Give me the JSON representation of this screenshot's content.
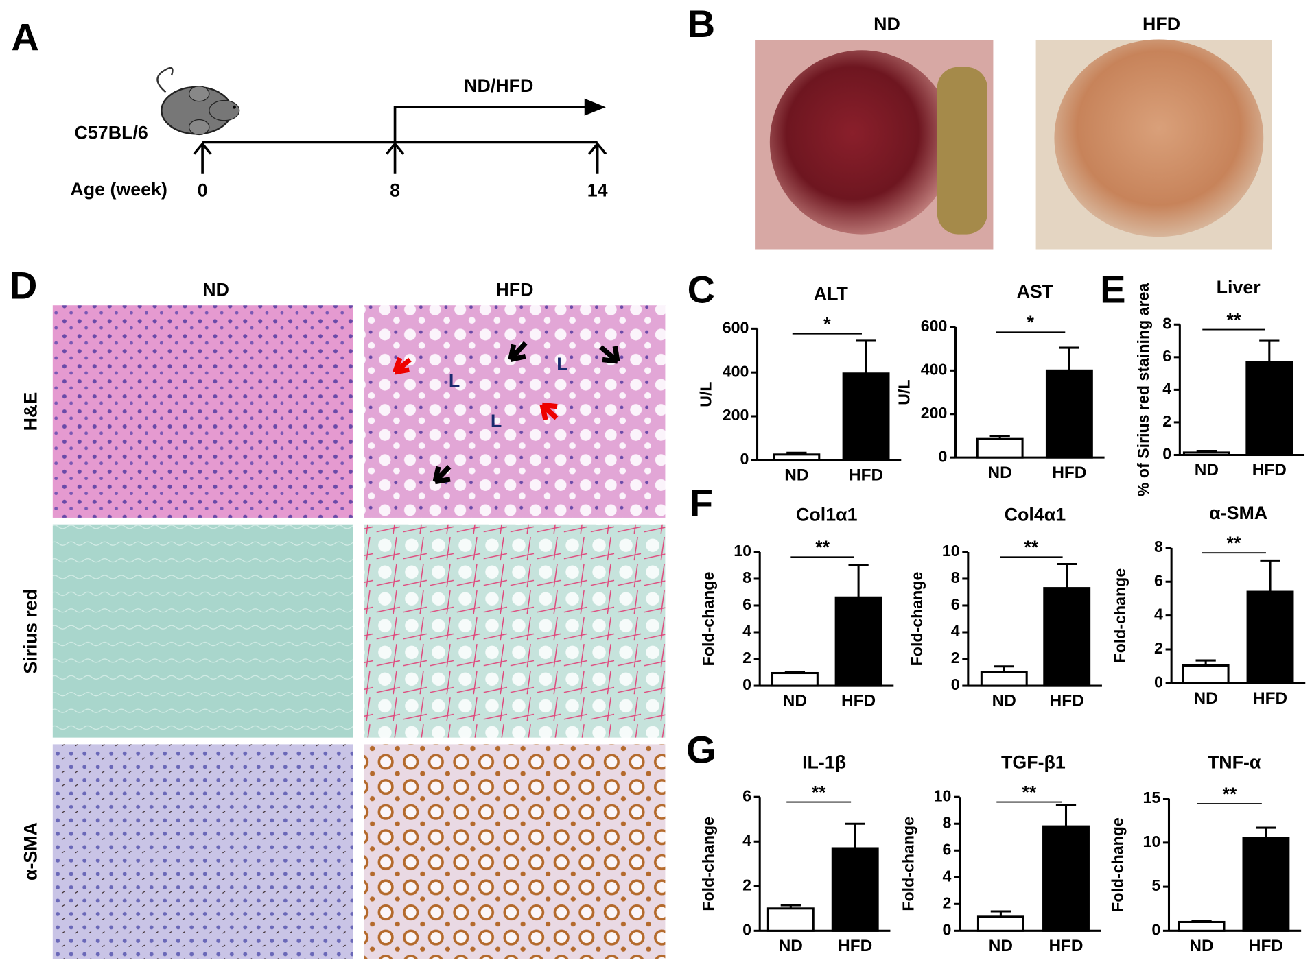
{
  "panel_labels": [
    "A",
    "B",
    "C",
    "D",
    "E",
    "F",
    "G"
  ],
  "timeline": {
    "strain": "C57BL/6",
    "treatment": "ND/HFD",
    "axis_label": "Age (week)",
    "ages": [
      "0",
      "8",
      "14"
    ]
  },
  "photos": {
    "titles": [
      "ND",
      "HFD"
    ]
  },
  "histology": {
    "columns": [
      "ND",
      "HFD"
    ],
    "rows": [
      "H&E",
      "Sirius red",
      "α-SMA"
    ],
    "annotations": [
      "L",
      "L",
      "L"
    ]
  },
  "chart_data": [
    {
      "type": "bar",
      "title": "ALT",
      "y_label": "U/L",
      "categories": [
        "ND",
        "HFD"
      ],
      "values": [
        25,
        395
      ],
      "errors": [
        8,
        150
      ],
      "colors": [
        "#ffffff",
        "#000000"
      ],
      "ylim": [
        0,
        600
      ],
      "yticks": [
        0,
        200,
        400,
        600
      ],
      "significance": "*"
    },
    {
      "type": "bar",
      "title": "AST",
      "y_label": "U/L",
      "categories": [
        "ND",
        "HFD"
      ],
      "values": [
        85,
        400
      ],
      "errors": [
        12,
        105
      ],
      "colors": [
        "#ffffff",
        "#000000"
      ],
      "ylim": [
        0,
        600
      ],
      "yticks": [
        0,
        200,
        400,
        600
      ],
      "significance": "*"
    },
    {
      "type": "bar",
      "title": "Liver",
      "y_label": "% of Sirius red staining area",
      "categories": [
        "ND",
        "HFD"
      ],
      "values": [
        0.15,
        5.7
      ],
      "errors": [
        0.1,
        1.3
      ],
      "colors": [
        "#ffffff",
        "#000000"
      ],
      "ylim": [
        0,
        8
      ],
      "yticks": [
        0,
        2,
        4,
        6,
        8
      ],
      "significance": "**"
    },
    {
      "type": "bar",
      "title": "Col1α1",
      "y_label": "Fold-change",
      "categories": [
        "ND",
        "HFD"
      ],
      "values": [
        0.95,
        6.6
      ],
      "errors": [
        0.05,
        2.4
      ],
      "colors": [
        "#ffffff",
        "#000000"
      ],
      "ylim": [
        0,
        10
      ],
      "yticks": [
        0,
        2,
        4,
        6,
        8,
        10
      ],
      "significance": "**"
    },
    {
      "type": "bar",
      "title": "Col4α1",
      "y_label": "Fold-change",
      "categories": [
        "ND",
        "HFD"
      ],
      "values": [
        1.05,
        7.3
      ],
      "errors": [
        0.4,
        1.8
      ],
      "colors": [
        "#ffffff",
        "#000000"
      ],
      "ylim": [
        0,
        10
      ],
      "yticks": [
        0,
        2,
        4,
        6,
        8,
        10
      ],
      "significance": "**"
    },
    {
      "type": "bar",
      "title": "α-SMA",
      "y_label": "Fold-change",
      "categories": [
        "ND",
        "HFD"
      ],
      "values": [
        1.05,
        5.4
      ],
      "errors": [
        0.3,
        1.85
      ],
      "colors": [
        "#ffffff",
        "#000000"
      ],
      "ylim": [
        0,
        8
      ],
      "yticks": [
        0,
        2,
        4,
        6,
        8
      ],
      "significance": "**"
    },
    {
      "type": "bar",
      "title": "IL-1β",
      "y_label": "Fold-change",
      "categories": [
        "ND",
        "HFD"
      ],
      "values": [
        1.0,
        3.7
      ],
      "errors": [
        0.15,
        1.1
      ],
      "colors": [
        "#ffffff",
        "#000000"
      ],
      "ylim": [
        0,
        6
      ],
      "yticks": [
        0,
        2,
        4,
        6
      ],
      "significance": "**"
    },
    {
      "type": "bar",
      "title": "TGF-β1",
      "y_label": "Fold-change",
      "categories": [
        "ND",
        "HFD"
      ],
      "values": [
        1.05,
        7.8
      ],
      "errors": [
        0.4,
        1.6
      ],
      "colors": [
        "#ffffff",
        "#000000"
      ],
      "ylim": [
        0,
        10
      ],
      "yticks": [
        0,
        2,
        4,
        6,
        8,
        10
      ],
      "significance": "**"
    },
    {
      "type": "bar",
      "title": "TNF-α",
      "y_label": "Fold-change",
      "categories": [
        "ND",
        "HFD"
      ],
      "values": [
        1.0,
        10.5
      ],
      "errors": [
        0.1,
        1.2
      ],
      "colors": [
        "#ffffff",
        "#000000"
      ],
      "ylim": [
        0,
        15
      ],
      "yticks": [
        0,
        5,
        10,
        15
      ],
      "significance": "**"
    }
  ]
}
